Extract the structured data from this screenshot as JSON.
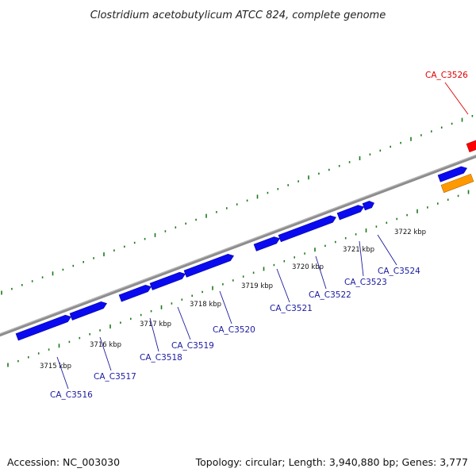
{
  "title": "Clostridium acetobutylicum ATCC 824, complete genome",
  "footer": {
    "accession": "Accession: NC_003030",
    "summary": "Topology: circular; Length: 3,940,880 bp; Genes: 3,777"
  },
  "colors": {
    "backbone": "#8c8c8c",
    "gene_forward": "#0a0af0",
    "gene_highlight": "#ff0000",
    "gene_other": "#ff9900",
    "ticks": "#1a7a1a",
    "label_default": "#1a1aa0",
    "label_highlight": "#e00000"
  },
  "scale_labels": [
    "3715 kbp",
    "3716 kbp",
    "3717 kbp",
    "3718 kbp",
    "3719 kbp",
    "3720 kbp",
    "3721 kbp",
    "3722 kbp"
  ],
  "gene_labels": [
    {
      "id": "CA_C3516",
      "highlight": false
    },
    {
      "id": "CA_C3517",
      "highlight": false
    },
    {
      "id": "CA_C3518",
      "highlight": false
    },
    {
      "id": "CA_C3519",
      "highlight": false
    },
    {
      "id": "CA_C3520",
      "highlight": false
    },
    {
      "id": "CA_C3521",
      "highlight": false
    },
    {
      "id": "CA_C3522",
      "highlight": false
    },
    {
      "id": "CA_C3523",
      "highlight": false
    },
    {
      "id": "CA_C3524",
      "highlight": false
    },
    {
      "id": "CA_C3526",
      "highlight": true
    }
  ]
}
